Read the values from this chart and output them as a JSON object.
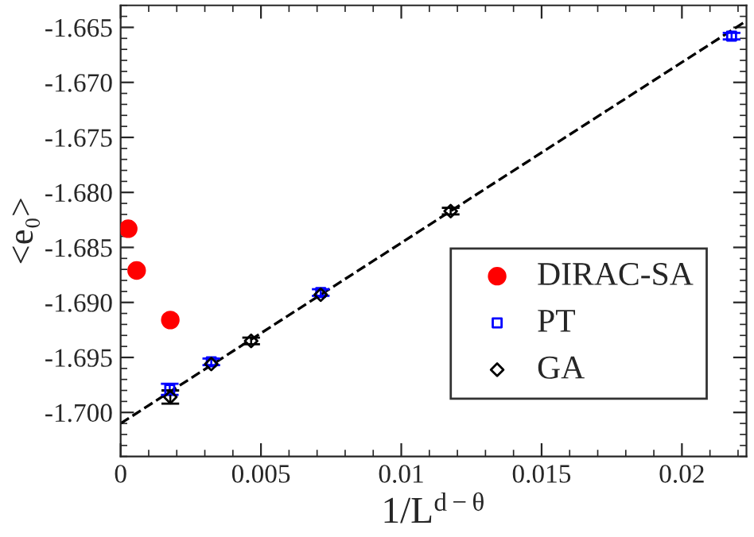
{
  "chart_data": {
    "type": "scatter",
    "xlabel": "1/L$^{d−θ}$",
    "ylabel": "<e₀>",
    "xlim": [
      0,
      0.0223
    ],
    "ylim": [
      -1.704,
      -1.663
    ],
    "xticks": [
      0,
      0.005,
      0.01,
      0.015,
      0.02
    ],
    "yticks": [
      {
        "value": -1.7,
        "label": "-1.700"
      },
      -1.695,
      {
        "value": -1.69,
        "label": "-1.690"
      },
      -1.685,
      {
        "value": -1.68,
        "label": "-1.680"
      },
      -1.675,
      {
        "value": -1.67,
        "label": "-1.670"
      },
      -1.665
    ],
    "grid": false,
    "legend": "bottom right",
    "series": [
      {
        "name": "DIRAC-SA",
        "color": "#ff0000",
        "marker": "circle",
        "x": [
          0.00027,
          0.00057,
          0.00177
        ],
        "values": [
          -1.6833,
          -1.6871,
          -1.6916
        ]
      },
      {
        "name": "PT",
        "color": "#0000ff",
        "marker": "square",
        "x": [
          0.00175,
          0.00323,
          0.00713,
          0.02177
        ],
        "values": [
          -1.6979,
          -1.6954,
          -1.6891,
          -1.6658
        ],
        "errors": [
          0.0005,
          0.0003,
          0.0003,
          0.0003
        ]
      },
      {
        "name": "GA",
        "color": "#000000",
        "marker": "diamond",
        "x": [
          0.00177,
          0.00323,
          0.00465,
          0.01176,
          0.00713
        ],
        "values": [
          -1.6986,
          -1.6956,
          -1.6935,
          -1.6817,
          -1.6893
        ],
        "errors": [
          0.0006,
          null,
          0.0003,
          0.0003,
          null
        ]
      },
      {
        "type": "line",
        "color": "#000000",
        "line_style": "dashed",
        "marker": "none",
        "x": [
          0,
          0.0223
        ],
        "values": [
          -1.701,
          -1.6644
        ]
      }
    ]
  }
}
